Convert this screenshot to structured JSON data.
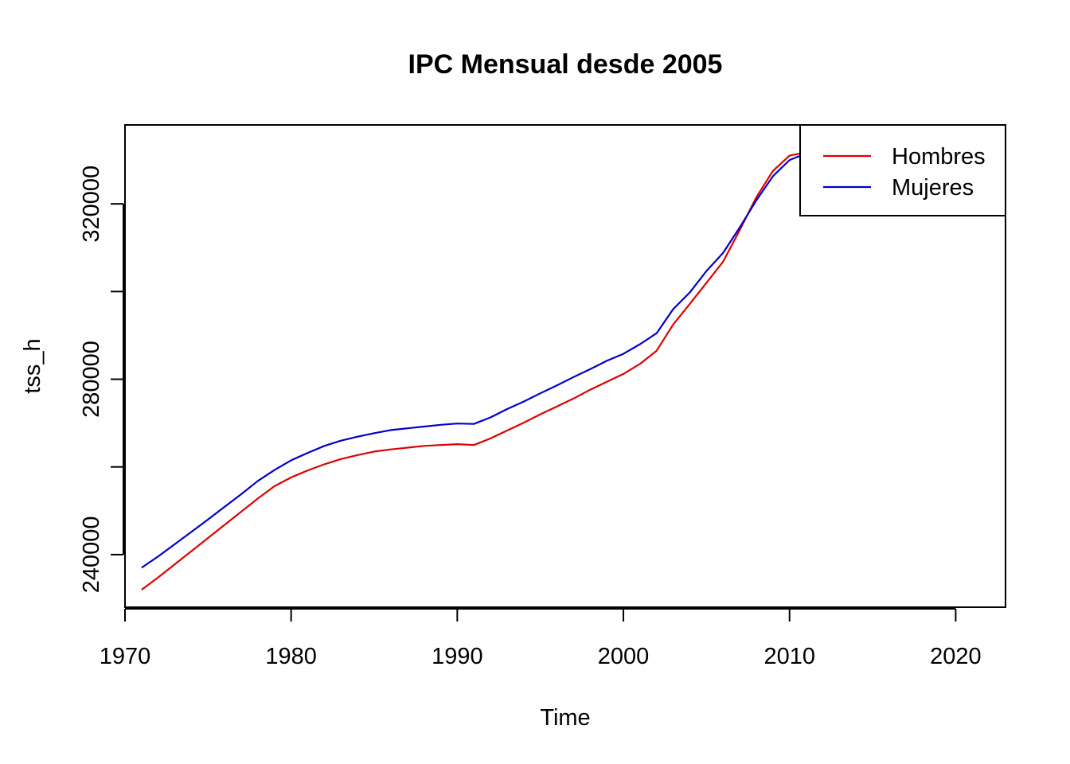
{
  "chart_data": {
    "type": "line",
    "title": "IPC Mensual desde 2005",
    "xlabel": "Time",
    "ylabel": "tss_h",
    "xlim": [
      1970,
      2023
    ],
    "ylim": [
      228000,
      338000
    ],
    "x_ticks": [
      1970,
      1980,
      1990,
      2000,
      2010,
      2020
    ],
    "y_ticks": [
      240000,
      280000,
      320000
    ],
    "y_minor_ticks": [
      260000,
      300000
    ],
    "legend_position": "top-right",
    "x": [
      1971,
      1972,
      1973,
      1974,
      1975,
      1976,
      1977,
      1978,
      1979,
      1980,
      1981,
      1982,
      1983,
      1984,
      1985,
      1986,
      1987,
      1988,
      1989,
      1990,
      1991,
      1992,
      1993,
      1994,
      1995,
      1996,
      1997,
      1998,
      1999,
      2000,
      2001,
      2002,
      2003,
      2004,
      2005,
      2006,
      2007,
      2008,
      2009,
      2010,
      2011,
      2012,
      2013,
      2014,
      2015,
      2016,
      2017
    ],
    "series": [
      {
        "name": "Hombres",
        "color": "#DF0000",
        "values": [
          232000,
          234800,
          237800,
          240800,
          243800,
          246800,
          249800,
          252800,
          255600,
          257600,
          259200,
          260600,
          261800,
          262700,
          263500,
          264000,
          264400,
          264800,
          265000,
          265200,
          265000,
          266500,
          268300,
          270100,
          272000,
          273800,
          275600,
          277600,
          279400,
          281200,
          283500,
          286500,
          292500,
          297200,
          302000,
          306800,
          314000,
          321500,
          327500,
          331000,
          331800,
          329000,
          327000,
          325800,
          325500,
          326200,
          327600
        ]
      },
      {
        "name": "Mujeres",
        "color": "#0000CD",
        "values": [
          237000,
          239600,
          242400,
          245200,
          248000,
          250900,
          253800,
          256800,
          259300,
          261500,
          263200,
          264800,
          266000,
          266900,
          267700,
          268400,
          268800,
          269200,
          269600,
          269900,
          269800,
          271300,
          273200,
          274900,
          276800,
          278600,
          280500,
          282300,
          284200,
          285800,
          288000,
          290500,
          296000,
          299800,
          304700,
          308800,
          314600,
          320800,
          326300,
          330000,
          331500,
          331000,
          330200,
          329800,
          329600,
          329900,
          330500
        ]
      }
    ]
  }
}
